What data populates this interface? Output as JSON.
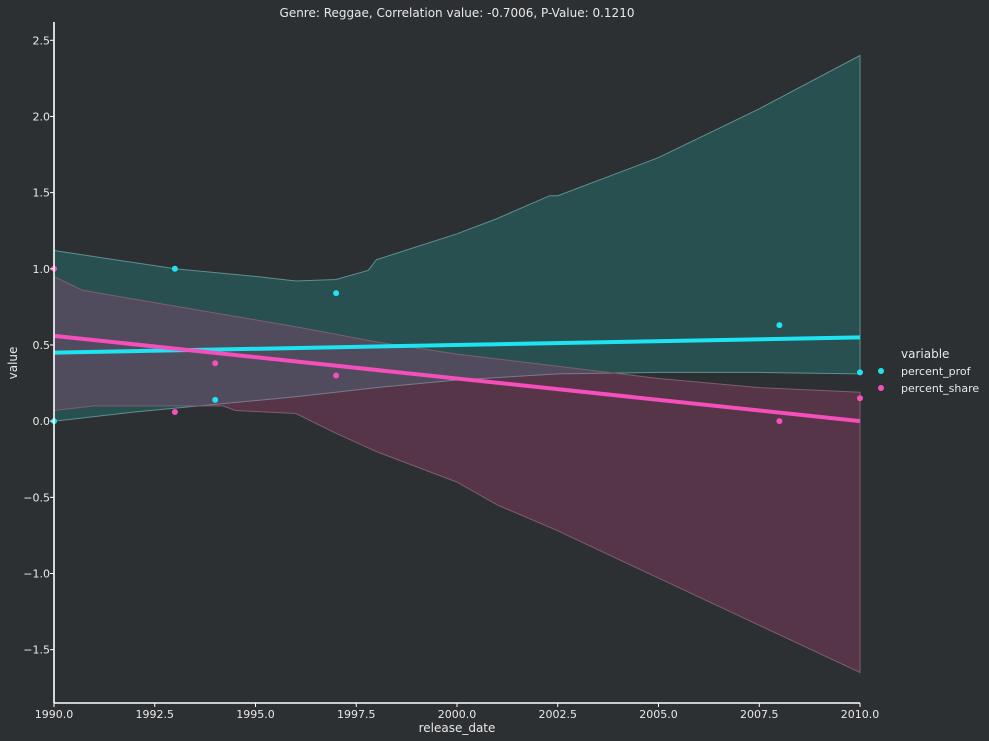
{
  "chart_data": {
    "type": "scatter",
    "title": "Genre: Reggae, Correlation value: -0.7006, P-Value: 0.1210",
    "xlabel": "release_date",
    "ylabel": "value",
    "xlim": [
      1990.0,
      2010.0
    ],
    "ylim": [
      -1.85,
      2.62
    ],
    "x_ticks": [
      1990.0,
      1992.5,
      1995.0,
      1997.5,
      2000.0,
      2002.5,
      2005.0,
      2007.5,
      2010.0
    ],
    "x_tick_labels": [
      "1990.0",
      "1992.5",
      "1995.0",
      "1997.5",
      "2000.0",
      "2002.5",
      "2005.0",
      "2007.5",
      "2010.0"
    ],
    "y_ticks": [
      -1.5,
      -1.0,
      -0.5,
      0.0,
      0.5,
      1.0,
      1.5,
      2.0,
      2.5
    ],
    "y_tick_labels": [
      "−1.5",
      "−1.0",
      "−0.5",
      "0.0",
      "0.5",
      "1.0",
      "1.5",
      "2.0",
      "2.5"
    ],
    "grid": false,
    "legend": {
      "title": "variable",
      "placement": "center-right"
    },
    "series": [
      {
        "name": "percent_prof",
        "color": "#1ee3f0",
        "points": [
          {
            "x": 1990.0,
            "y": 0.0
          },
          {
            "x": 1993.0,
            "y": 1.0
          },
          {
            "x": 1994.0,
            "y": 0.14
          },
          {
            "x": 1997.0,
            "y": 0.84
          },
          {
            "x": 2008.0,
            "y": 0.63
          },
          {
            "x": 2010.0,
            "y": 0.32
          }
        ],
        "regression": {
          "x": [
            1990.0,
            2010.0
          ],
          "y": [
            0.45,
            0.55
          ]
        },
        "ci_upper": [
          [
            1990,
            1.12
          ],
          [
            1993,
            1.0
          ],
          [
            1995,
            0.95
          ],
          [
            1996,
            0.92
          ],
          [
            1997,
            0.93
          ],
          [
            1997.8,
            0.99
          ],
          [
            1998,
            1.06
          ],
          [
            2000,
            1.23
          ],
          [
            2001,
            1.33
          ],
          [
            2002.3,
            1.48
          ],
          [
            2002.5,
            1.48
          ],
          [
            2005,
            1.73
          ],
          [
            2007.5,
            2.05
          ],
          [
            2010,
            2.4
          ]
        ],
        "ci_lower": [
          [
            1990,
            0.0
          ],
          [
            1992,
            0.06
          ],
          [
            1994,
            0.11
          ],
          [
            1996,
            0.16
          ],
          [
            1998,
            0.22
          ],
          [
            2000,
            0.27
          ],
          [
            2002.5,
            0.31
          ],
          [
            2005,
            0.32
          ],
          [
            2007.5,
            0.32
          ],
          [
            2010,
            0.31
          ]
        ]
      },
      {
        "name": "percent_share",
        "color": "#f54fbc",
        "points": [
          {
            "x": 1990.0,
            "y": 1.0
          },
          {
            "x": 1993.0,
            "y": 0.06
          },
          {
            "x": 1994.0,
            "y": 0.38
          },
          {
            "x": 1997.0,
            "y": 0.3
          },
          {
            "x": 2008.0,
            "y": 0.0
          },
          {
            "x": 2010.0,
            "y": 0.15
          }
        ],
        "regression": {
          "x": [
            1990.0,
            2010.0
          ],
          "y": [
            0.56,
            0.0
          ]
        },
        "ci_upper": [
          [
            1990,
            0.95
          ],
          [
            1990.7,
            0.86
          ],
          [
            1992,
            0.8
          ],
          [
            1994,
            0.71
          ],
          [
            1996,
            0.62
          ],
          [
            1998,
            0.52
          ],
          [
            2000,
            0.44
          ],
          [
            2002.5,
            0.36
          ],
          [
            2005,
            0.28
          ],
          [
            2007.5,
            0.22
          ],
          [
            2010,
            0.19
          ]
        ],
        "ci_lower": [
          [
            1990,
            0.07
          ],
          [
            1991,
            0.1
          ],
          [
            1993,
            0.1
          ],
          [
            1994.2,
            0.1
          ],
          [
            1994.5,
            0.07
          ],
          [
            1996,
            0.05
          ],
          [
            1997,
            -0.08
          ],
          [
            1998,
            -0.2
          ],
          [
            2000,
            -0.4
          ],
          [
            2001,
            -0.55
          ],
          [
            2002.5,
            -0.72
          ],
          [
            2005,
            -1.03
          ],
          [
            2007.5,
            -1.34
          ],
          [
            2010,
            -1.65
          ]
        ]
      }
    ]
  }
}
